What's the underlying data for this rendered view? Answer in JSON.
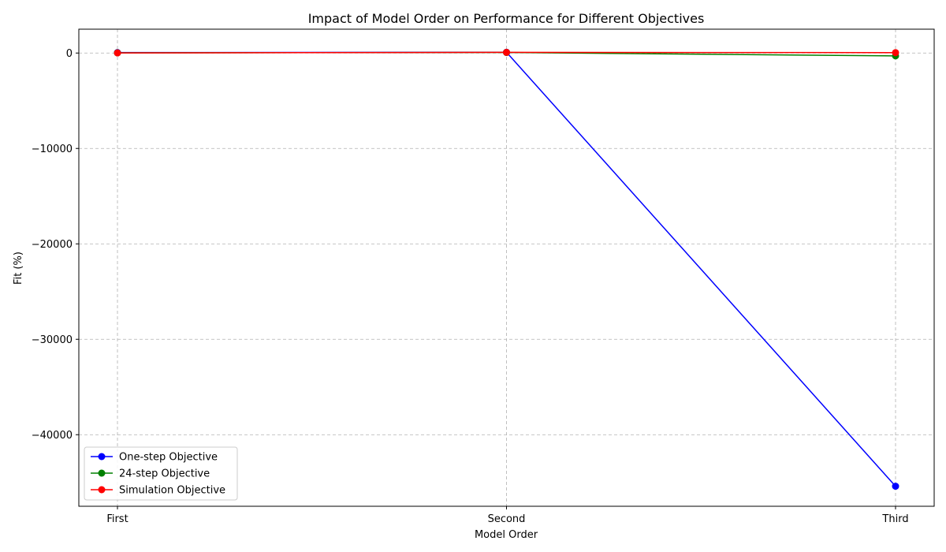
{
  "chart_data": {
    "type": "line",
    "title": "Impact of Model Order on Performance for Different Objectives",
    "xlabel": "Model Order",
    "ylabel": "Fit (%)",
    "categories": [
      "First",
      "Second",
      "Third"
    ],
    "ylim": [
      -47500,
      2500
    ],
    "yticks": [
      0,
      -10000,
      -20000,
      -30000,
      -40000
    ],
    "ytick_labels": [
      "0",
      "−10000",
      "−20000",
      "−30000",
      "−40000"
    ],
    "grid": true,
    "legend_position": "lower-left",
    "series": [
      {
        "name": "One-step Objective",
        "color": "#0000ff",
        "values": [
          50,
          80,
          -45400
        ]
      },
      {
        "name": "24-step Objective",
        "color": "#008000",
        "values": [
          20,
          60,
          -300
        ]
      },
      {
        "name": "Simulation Objective",
        "color": "#ff0000",
        "values": [
          10,
          70,
          40
        ]
      }
    ]
  }
}
